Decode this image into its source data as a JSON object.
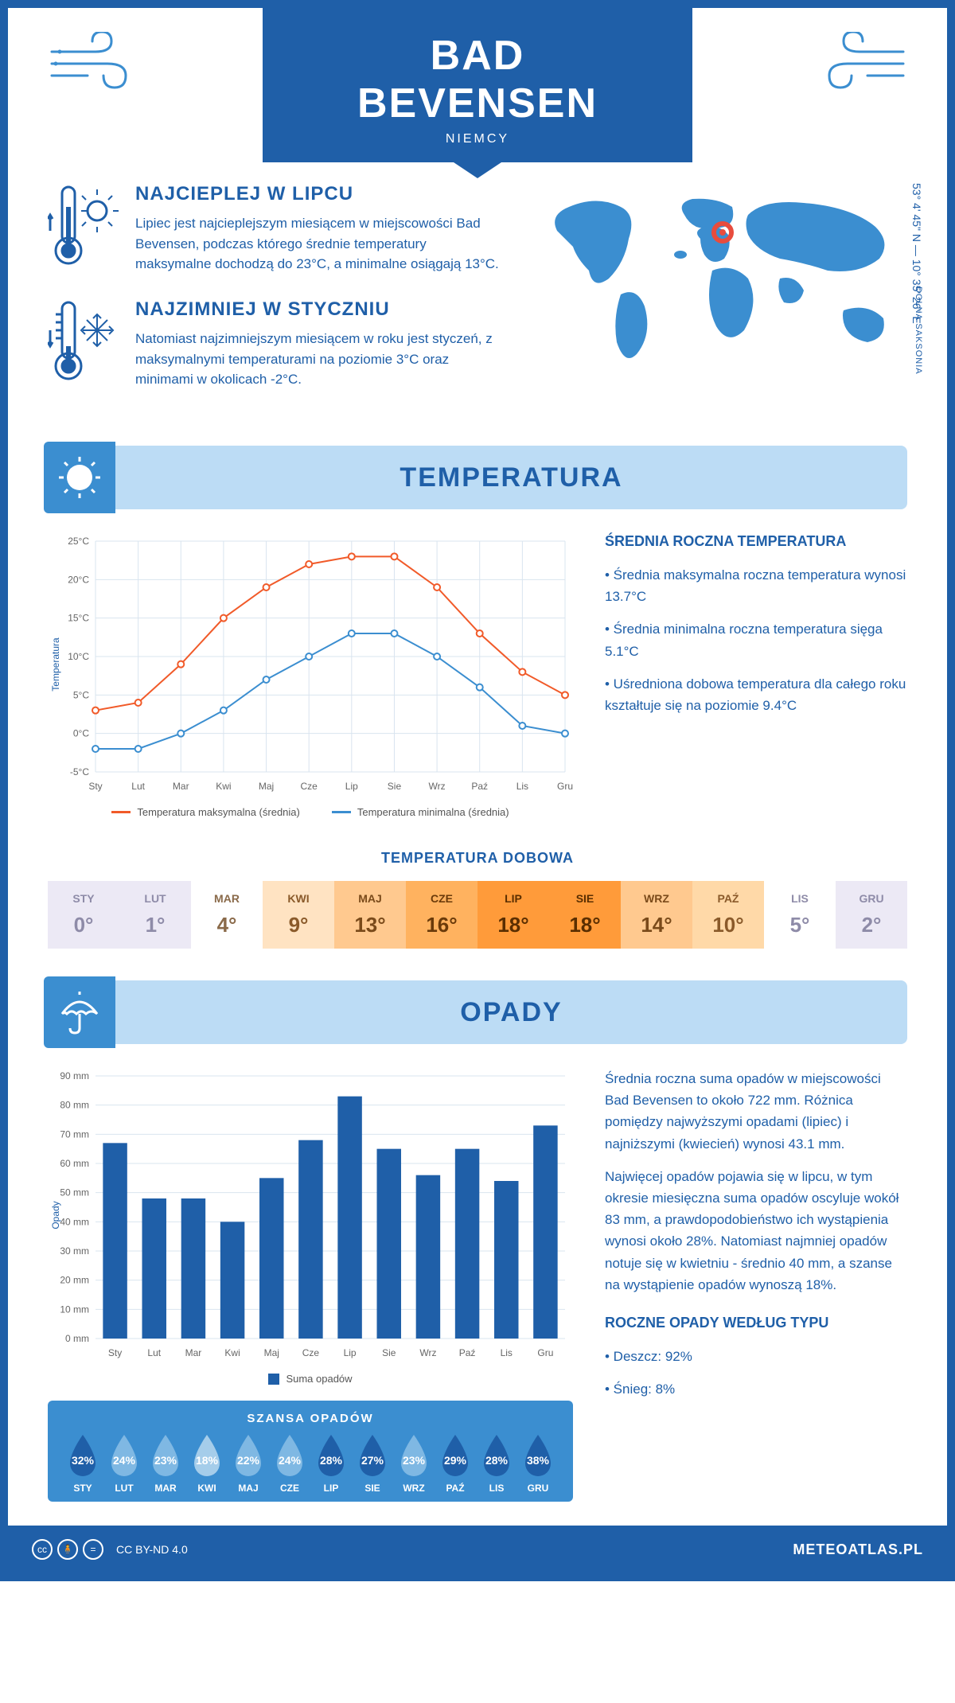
{
  "header": {
    "city": "BAD BEVENSEN",
    "country": "NIEMCY"
  },
  "coords": "53° 4' 45\" N — 10° 35' 26\" E",
  "region": "DOLNA SAKSONIA",
  "warmest": {
    "title": "NAJCIEPLEJ W LIPCU",
    "text": "Lipiec jest najcieplejszym miesiącem w miejscowości Bad Bevensen, podczas którego średnie temperatury maksymalne dochodzą do 23°C, a minimalne osiągają 13°C."
  },
  "coldest": {
    "title": "NAJZIMNIEJ W STYCZNIU",
    "text": "Natomiast najzimniejszym miesiącem w roku jest styczeń, z maksymalnymi temperaturami na poziomie 3°C oraz minimami w okolicach -2°C."
  },
  "temp_section_title": "TEMPERATURA",
  "temp_chart": {
    "type": "line",
    "months": [
      "Sty",
      "Lut",
      "Mar",
      "Kwi",
      "Maj",
      "Cze",
      "Lip",
      "Sie",
      "Wrz",
      "Paź",
      "Lis",
      "Gru"
    ],
    "ylabel": "Temperatura",
    "ylim": [
      -5,
      25
    ],
    "ytick_step": 5,
    "ytick_labels": [
      "-5°C",
      "0°C",
      "5°C",
      "10°C",
      "15°C",
      "20°C",
      "25°C"
    ],
    "series": [
      {
        "name": "Temperatura maksymalna (średnia)",
        "color": "#f15a29",
        "values": [
          3,
          4,
          9,
          15,
          19,
          22,
          23,
          23,
          19,
          13,
          8,
          5
        ]
      },
      {
        "name": "Temperatura minimalna (średnia)",
        "color": "#3b8ed0",
        "values": [
          -2,
          -2,
          0,
          3,
          7,
          10,
          13,
          13,
          10,
          6,
          1,
          0
        ]
      }
    ],
    "grid_color": "#d9e4ef",
    "background": "#ffffff",
    "marker": "circle",
    "line_width": 2
  },
  "temp_side": {
    "title": "ŚREDNIA ROCZNA TEMPERATURA",
    "lines": [
      "• Średnia maksymalna roczna temperatura wynosi 13.7°C",
      "• Średnia minimalna roczna temperatura sięga 5.1°C",
      "• Uśredniona dobowa temperatura dla całego roku kształtuje się na poziomie 9.4°C"
    ]
  },
  "daily": {
    "title": "TEMPERATURA DOBOWA",
    "months": [
      "STY",
      "LUT",
      "MAR",
      "KWI",
      "MAJ",
      "CZE",
      "LIP",
      "SIE",
      "WRZ",
      "PAŹ",
      "LIS",
      "GRU"
    ],
    "values": [
      "0°",
      "1°",
      "4°",
      "9°",
      "13°",
      "16°",
      "18°",
      "18°",
      "14°",
      "10°",
      "5°",
      "2°"
    ],
    "bg_colors": [
      "#ece9f5",
      "#ece9f5",
      "#ffffff",
      "#ffe3c2",
      "#ffc98f",
      "#ffb25f",
      "#ff9b3a",
      "#ff9b3a",
      "#ffc98f",
      "#ffd9a8",
      "#ffffff",
      "#ece9f5"
    ],
    "text_colors": [
      "#8e8ba8",
      "#8e8ba8",
      "#8a6a4a",
      "#8a5a2a",
      "#7a4a1a",
      "#6a3a0a",
      "#5a2e00",
      "#5a2e00",
      "#7a4a1a",
      "#8a5a2a",
      "#8e8ba8",
      "#8e8ba8"
    ]
  },
  "rain_section_title": "OPADY",
  "rain_chart": {
    "type": "bar",
    "months": [
      "Sty",
      "Lut",
      "Mar",
      "Kwi",
      "Maj",
      "Cze",
      "Lip",
      "Sie",
      "Wrz",
      "Paź",
      "Lis",
      "Gru"
    ],
    "ylabel": "Opady",
    "ylim": [
      0,
      90
    ],
    "ytick_step": 10,
    "ytick_suffix": " mm",
    "values": [
      67,
      48,
      48,
      40,
      55,
      68,
      83,
      65,
      56,
      65,
      54,
      73
    ],
    "bar_color": "#1f5fa8",
    "legend": "Suma opadów",
    "grid_color": "#d9e4ef"
  },
  "rain_side": {
    "p1": "Średnia roczna suma opadów w miejscowości Bad Bevensen to około 722 mm. Różnica pomiędzy najwyższymi opadami (lipiec) i najniższymi (kwiecień) wynosi 43.1 mm.",
    "p2": "Najwięcej opadów pojawia się w lipcu, w tym okresie miesięczna suma opadów oscyluje wokół 83 mm, a prawdopodobieństwo ich wystąpienia wynosi około 28%. Natomiast najmniej opadów notuje się w kwietniu - średnio 40 mm, a szanse na wystąpienie opadów wynoszą 18%.",
    "type_title": "ROCZNE OPADY WEDŁUG TYPU",
    "type_lines": [
      "• Deszcz: 92%",
      "• Śnieg: 8%"
    ]
  },
  "rain_chance": {
    "title": "SZANSA OPADÓW",
    "months": [
      "STY",
      "LUT",
      "MAR",
      "KWI",
      "MAJ",
      "CZE",
      "LIP",
      "SIE",
      "WRZ",
      "PAŹ",
      "LIS",
      "GRU"
    ],
    "percents": [
      "32%",
      "24%",
      "23%",
      "18%",
      "22%",
      "24%",
      "28%",
      "27%",
      "23%",
      "29%",
      "28%",
      "38%"
    ],
    "drop_colors": [
      "#1f5fa8",
      "#7fb8e3",
      "#7fb8e3",
      "#a5cdea",
      "#7fb8e3",
      "#7fb8e3",
      "#1f5fa8",
      "#1f5fa8",
      "#7fb8e3",
      "#1f5fa8",
      "#1f5fa8",
      "#1f5fa8"
    ]
  },
  "footer": {
    "license": "CC BY-ND 4.0",
    "site": "METEOATLAS.PL"
  }
}
